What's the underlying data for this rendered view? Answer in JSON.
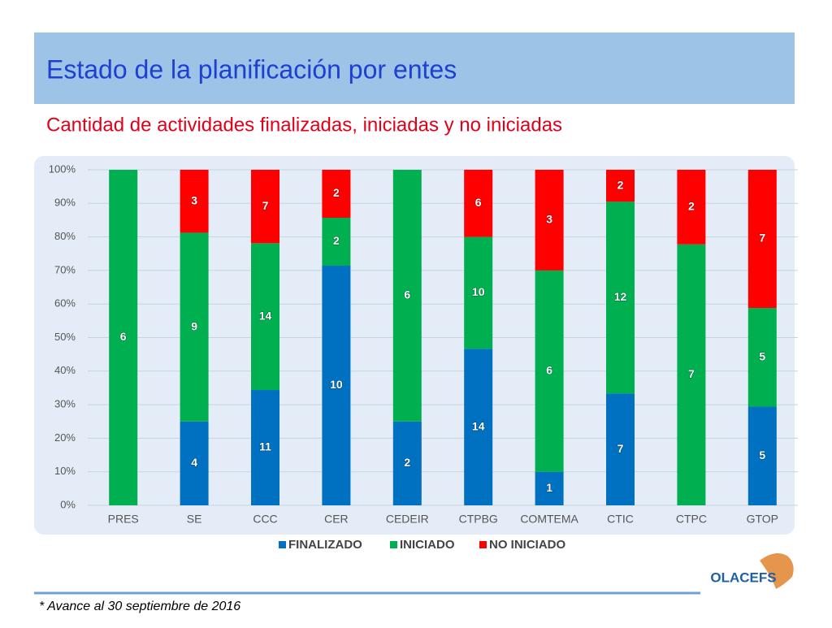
{
  "chart_data": {
    "type": "stacked_percent_bar",
    "title": "Estado de la planificación por entes",
    "subtitle": "Cantidad de actividades finalizadas, iniciadas y no iniciadas",
    "categories": [
      "PRES",
      "SE",
      "CCC",
      "CER",
      "CEDEIR",
      "CTPBG",
      "COMTEMA",
      "CTIC",
      "CTPC",
      "GTOP"
    ],
    "series": [
      {
        "name": "FINALIZADO",
        "color": "#0070c0",
        "values": [
          0,
          4,
          11,
          10,
          2,
          14,
          1,
          7,
          0,
          5
        ]
      },
      {
        "name": "INICIADO",
        "color": "#00b050",
        "values": [
          6,
          9,
          14,
          2,
          6,
          10,
          6,
          12,
          7,
          5
        ]
      },
      {
        "name": "NO INICIADO",
        "color": "#ff0000",
        "values": [
          0,
          3,
          7,
          2,
          0,
          6,
          3,
          2,
          2,
          7
        ]
      }
    ],
    "ylim": [
      0,
      100
    ],
    "yticks": [
      {
        "value": 0,
        "label": "0%"
      },
      {
        "value": 10,
        "label": "10%"
      },
      {
        "value": 20,
        "label": "20%"
      },
      {
        "value": 30,
        "label": "30%"
      },
      {
        "value": 40,
        "label": "40%"
      },
      {
        "value": 50,
        "label": "50%"
      },
      {
        "value": 60,
        "label": "60%"
      },
      {
        "value": 70,
        "label": "70%"
      },
      {
        "value": 80,
        "label": "80%"
      },
      {
        "value": 90,
        "label": "90%"
      },
      {
        "value": 100,
        "label": "100%"
      }
    ],
    "grid": true,
    "legend": "bottom",
    "footnote": "* Avance al 30 septiembre de 2016",
    "logo": "OLACEFS"
  }
}
